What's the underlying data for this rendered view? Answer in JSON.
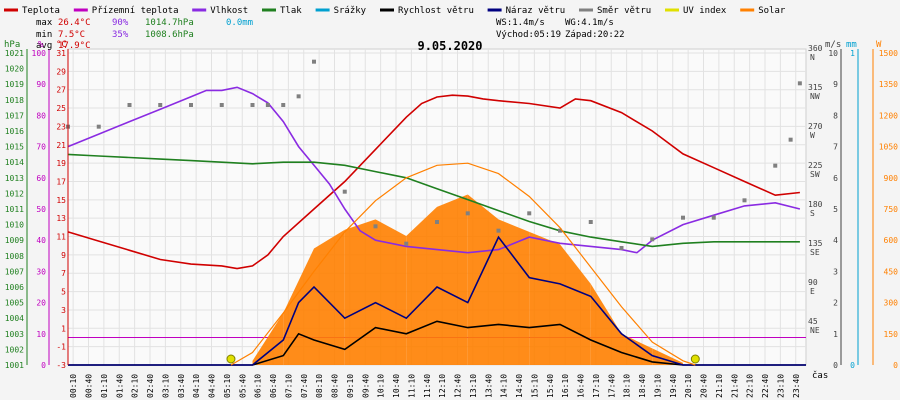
{
  "legend": [
    {
      "label": "Teplota",
      "color": "#d00000"
    },
    {
      "label": "Přízemní teplota",
      "color": "#c000c0"
    },
    {
      "label": "Vlhkost",
      "color": "#8a2be2"
    },
    {
      "label": "Tlak",
      "color": "#208020"
    },
    {
      "label": "Srážky",
      "color": "#00a0d0"
    },
    {
      "label": "Rychlost větru",
      "color": "#000000"
    },
    {
      "label": "Náraz větru",
      "color": "#000080"
    },
    {
      "label": "Směr větru",
      "color": "#808080"
    },
    {
      "label": "UV index",
      "color": "#e0e000"
    },
    {
      "label": "Solar",
      "color": "#ff8000"
    }
  ],
  "stats": {
    "max_label": "max",
    "max_temp": "26.4°C",
    "max_hum": "90%",
    "max_press": "1014.7hPa",
    "rain": "0.0mm",
    "min_label": "min",
    "min_temp": "7.5°C",
    "min_hum": "35%",
    "min_press": "1008.6hPa",
    "avg_label": "avg",
    "avg_temp": "17.9°C",
    "ws": "WS:1.4m/s",
    "wg": "WG:4.1m/s",
    "sunrise": "Východ:05:19",
    "sunset": "Západ:20:22"
  },
  "chart_data": {
    "type": "line",
    "title": "9.05.2020",
    "xlabel": "čas",
    "axis_units": {
      "press": "hPa",
      "hum": "%",
      "temp": "°C",
      "wind": "m/s",
      "rain": "mm",
      "solar": "W"
    },
    "x_ticks": [
      "00:10",
      "00:40",
      "01:10",
      "01:40",
      "02:10",
      "02:40",
      "03:10",
      "03:40",
      "04:10",
      "04:40",
      "05:10",
      "05:40",
      "06:10",
      "06:40",
      "07:10",
      "07:40",
      "08:10",
      "08:40",
      "09:10",
      "09:40",
      "10:10",
      "10:40",
      "11:10",
      "11:40",
      "12:10",
      "12:40",
      "13:10",
      "13:40",
      "14:10",
      "14:40",
      "15:10",
      "15:40",
      "16:10",
      "16:40",
      "17:10",
      "17:40",
      "18:10",
      "18:40",
      "19:10",
      "19:40",
      "20:10",
      "20:40",
      "21:10",
      "21:40",
      "22:10",
      "22:40",
      "23:10",
      "23:40"
    ],
    "axes": {
      "press_ticks": [
        "1001",
        "1002",
        "1003",
        "1004",
        "1005",
        "1006",
        "1007",
        "1008",
        "1009",
        "1010",
        "1011",
        "1012",
        "1013",
        "1014",
        "1015",
        "1016",
        "1017",
        "1018",
        "1019",
        "1020",
        "1021"
      ],
      "hum_ticks": [
        "0",
        "10",
        "20",
        "30",
        "40",
        "50",
        "60",
        "70",
        "80",
        "90",
        "100"
      ],
      "temp_ticks": [
        "-3",
        "-1",
        "1",
        "3",
        "5",
        "7",
        "9",
        "11",
        "13",
        "15",
        "17",
        "19",
        "21",
        "23",
        "25",
        "27",
        "29",
        "31"
      ],
      "dir_ticks": [
        {
          "deg": "45",
          "dir": "NE"
        },
        {
          "deg": "90",
          "dir": "E"
        },
        {
          "deg": "135",
          "dir": "SE"
        },
        {
          "deg": "180",
          "dir": "S"
        },
        {
          "deg": "225",
          "dir": "SW"
        },
        {
          "deg": "270",
          "dir": "W"
        },
        {
          "deg": "315",
          "dir": "NW"
        },
        {
          "deg": "360",
          "dir": "N"
        }
      ],
      "wind_ticks": [
        "0",
        "1",
        "2",
        "3",
        "4",
        "5",
        "6",
        "7",
        "8",
        "9",
        "10"
      ],
      "rain_ticks": [
        "0",
        "1"
      ],
      "solar_ticks": [
        "0",
        "150",
        "300",
        "450",
        "600",
        "750",
        "900",
        "1050",
        "1200",
        "1350",
        "1500"
      ],
      "press_range": [
        1001,
        1021
      ],
      "hum_range": [
        0,
        100
      ],
      "temp_range": [
        -3,
        31
      ],
      "wind_range": [
        0,
        10
      ],
      "solar_range": [
        0,
        1500
      ]
    },
    "series": [
      {
        "name": "Teplota",
        "axis": "temp",
        "color": "#d00000",
        "x": [
          0,
          1,
          2,
          3,
          4,
          5,
          5.5,
          6,
          6.5,
          7,
          8,
          9,
          10,
          11,
          11.5,
          12,
          12.5,
          13,
          13.5,
          14,
          15,
          16,
          16.5,
          17,
          18,
          19,
          20,
          21,
          22,
          23,
          23.8
        ],
        "y": [
          11.5,
          10.5,
          9.5,
          8.5,
          8.0,
          7.8,
          7.5,
          7.8,
          9.0,
          11.0,
          14.0,
          17.0,
          20.5,
          24.0,
          25.5,
          26.2,
          26.4,
          26.3,
          26.0,
          25.8,
          25.5,
          25.0,
          26.0,
          25.8,
          24.5,
          22.5,
          20.0,
          18.5,
          17.0,
          15.5,
          15.8
        ]
      },
      {
        "name": "Vlhkost",
        "axis": "hum",
        "color": "#8a2be2",
        "x": [
          0,
          1,
          2,
          3,
          4,
          4.5,
          5,
          5.5,
          6,
          6.5,
          7,
          7.5,
          8,
          8.5,
          9,
          9.5,
          10,
          11,
          12,
          13,
          14,
          15,
          16,
          17,
          18,
          18.5,
          19,
          20,
          21,
          22,
          23,
          23.8
        ],
        "y": [
          70,
          74,
          78,
          82,
          86,
          88,
          88,
          89,
          87,
          84,
          78,
          70,
          64,
          58,
          50,
          43,
          40,
          38,
          37,
          36,
          37,
          41,
          39,
          38,
          37,
          36,
          40,
          45,
          48,
          51,
          52,
          50
        ]
      },
      {
        "name": "Tlak",
        "axis": "press",
        "color": "#208020",
        "x": [
          0,
          1,
          2,
          3,
          4,
          5,
          6,
          7,
          8,
          9,
          10,
          11,
          12,
          13,
          14,
          15,
          16,
          17,
          18,
          19,
          20,
          21,
          22,
          23,
          23.8
        ],
        "y": [
          1014.5,
          1014.4,
          1014.3,
          1014.2,
          1014.1,
          1014.0,
          1013.9,
          1014.0,
          1014.0,
          1013.8,
          1013.4,
          1013.0,
          1012.3,
          1011.6,
          1010.9,
          1010.2,
          1009.6,
          1009.2,
          1008.9,
          1008.6,
          1008.8,
          1008.9,
          1008.9,
          1008.9,
          1008.9
        ]
      },
      {
        "name": "Směr větru",
        "axis": "dir",
        "color": "#808080",
        "x": [
          0,
          1,
          2,
          3,
          4,
          5,
          6,
          6.5,
          7,
          7.5,
          8,
          9,
          10,
          11,
          12,
          13,
          14,
          15,
          16,
          17,
          18,
          19,
          20,
          21,
          22,
          23,
          23.5,
          23.8
        ],
        "y": [
          275,
          275,
          300,
          300,
          300,
          300,
          300,
          300,
          300,
          310,
          350,
          200,
          160,
          140,
          165,
          175,
          155,
          175,
          155,
          165,
          135,
          145,
          170,
          170,
          190,
          230,
          260,
          325
        ]
      },
      {
        "name": "Rychlost větru",
        "axis": "wind",
        "color": "#000000",
        "x": [
          0,
          6,
          7,
          7.5,
          8,
          9,
          10,
          11,
          12,
          13,
          14,
          15,
          16,
          17,
          18,
          19,
          20,
          24
        ],
        "y": [
          0,
          0,
          0.3,
          1.0,
          0.8,
          0.5,
          1.2,
          1.0,
          1.4,
          1.2,
          1.3,
          1.2,
          1.3,
          0.8,
          0.4,
          0.1,
          0,
          0
        ]
      },
      {
        "name": "Náraz větru",
        "axis": "wind",
        "color": "#000080",
        "x": [
          0,
          6,
          7,
          7.5,
          8,
          9,
          10,
          11,
          12,
          13,
          14,
          15,
          16,
          17,
          18,
          19,
          20,
          24
        ],
        "y": [
          0,
          0,
          0.8,
          2.0,
          2.5,
          1.5,
          2.0,
          1.5,
          2.5,
          2.0,
          4.1,
          2.8,
          2.6,
          2.2,
          1.0,
          0.3,
          0,
          0
        ]
      },
      {
        "name": "Solar",
        "axis": "solar",
        "color": "#ff8000",
        "x": [
          5.3,
          6,
          7,
          8,
          9,
          10,
          11,
          12,
          13,
          14,
          15,
          16,
          17,
          18,
          19,
          20,
          20.4
        ],
        "y": [
          0,
          60,
          250,
          450,
          640,
          790,
          900,
          960,
          970,
          920,
          810,
          660,
          470,
          280,
          110,
          20,
          0
        ]
      }
    ],
    "solar_bars": {
      "axis": "solar",
      "color": "#ff8000",
      "x": [
        6,
        7,
        8,
        9,
        10,
        11,
        12,
        13,
        14,
        15,
        16,
        17,
        18,
        19,
        20
      ],
      "y": [
        20,
        250,
        560,
        650,
        700,
        620,
        760,
        820,
        700,
        640,
        580,
        390,
        150,
        80,
        10
      ]
    },
    "sun_markers": {
      "color": "#e0e000",
      "x": [
        5.3,
        20.4
      ]
    },
    "freeze_line": {
      "axis": "temp",
      "value": 0,
      "color": "#c000c0"
    }
  }
}
